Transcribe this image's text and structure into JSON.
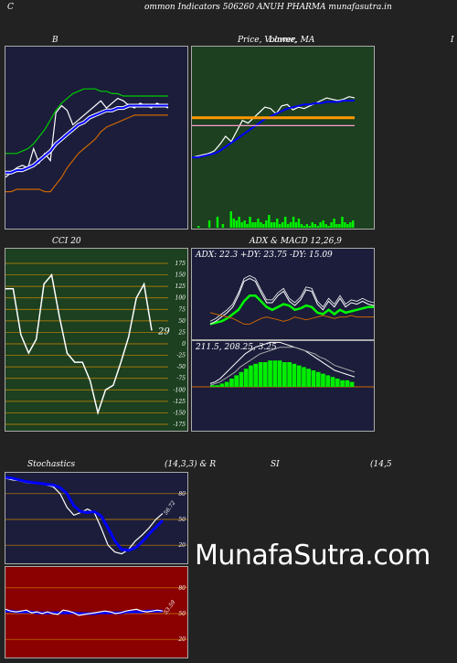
{
  "header": {
    "left_letter": "C",
    "title": "ommon  Indicators 506260  ANUH PHARMA munafasutra.in",
    "right_letter": ""
  },
  "titles": {
    "bb": "B",
    "price": "Price,  Volume,  MA",
    "price_overlap": "Lower,",
    "right_edge": "I",
    "cci": "CCI 20",
    "adx_macd": "ADX  & MACD 12,26,9",
    "stoch": "Stochastics",
    "stoch_params": "(14,3,3) & R",
    "rsi": "SI",
    "rsi_params": "(14,5"
  },
  "cci_panel": {
    "ticks": [
      "175",
      "150",
      "125",
      "100",
      "75",
      "50",
      "25",
      "0",
      "-25",
      "-50",
      "-75",
      "-100",
      "-125",
      "-150",
      "-175"
    ],
    "current_label": "29"
  },
  "adx_panel": {
    "readout": "ADX: 22.3  +DY: 23.75  -DY: 15.09"
  },
  "macd_panel": {
    "readout": "211.5,  208.25,  3.25"
  },
  "stoch_panel": {
    "ticks": [
      "80",
      "50",
      "20"
    ],
    "current_label": "56.72"
  },
  "rsi_panel": {
    "ticks": [
      "80",
      "50",
      "20"
    ],
    "current_label": "53.59"
  },
  "watermark": "MunafaSutra.com",
  "colors": {
    "page_bg": "#222222",
    "navy_panel": "#1b1d3b",
    "green_panel": "#1c4020",
    "red_panel": "#8b0000",
    "orange_line": "#cc6600",
    "blue_line": "#0000ff",
    "green_line": "#00cc00"
  },
  "chart_data": [
    {
      "type": "line",
      "name": "bollinger",
      "series": [
        {
          "name": "price",
          "color": "#ffffff",
          "values": [
            158,
            160,
            162,
            163,
            162,
            170,
            164,
            168,
            165,
            185,
            188,
            186,
            180,
            182,
            184,
            186,
            188,
            190,
            187,
            189,
            191,
            190,
            188,
            187,
            189,
            188,
            187,
            189,
            188,
            187
          ]
        },
        {
          "name": "upper",
          "color": "#00cc00",
          "values": [
            168,
            168,
            168,
            169,
            170,
            172,
            175,
            178,
            182,
            186,
            189,
            191,
            193,
            194,
            195,
            195,
            195,
            194,
            194,
            193,
            193,
            192,
            192,
            192,
            192,
            192,
            192,
            192,
            192,
            192
          ]
        },
        {
          "name": "middle",
          "color": "#0000ff",
          "values": [
            160,
            160,
            161,
            161,
            162,
            163,
            165,
            167,
            169,
            172,
            174,
            176,
            178,
            180,
            181,
            183,
            184,
            185,
            186,
            186,
            187,
            187,
            188,
            188,
            188,
            188,
            188,
            188,
            188,
            188
          ]
        },
        {
          "name": "lower",
          "color": "#cc6600",
          "values": [
            152,
            152,
            153,
            153,
            153,
            153,
            153,
            152,
            152,
            155,
            158,
            162,
            165,
            168,
            170,
            172,
            174,
            177,
            179,
            180,
            181,
            182,
            183,
            184,
            184,
            184,
            184,
            184,
            184,
            184
          ]
        }
      ]
    },
    {
      "type": "line",
      "name": "price_ma_volume",
      "series": [
        {
          "name": "price",
          "color": "#ffffff",
          "values": [
            160,
            161,
            162,
            163,
            165,
            170,
            176,
            172,
            180,
            188,
            186,
            190,
            194,
            198,
            197,
            193,
            199,
            200,
            196,
            198,
            197,
            199,
            201,
            203,
            205,
            204,
            203,
            204,
            206,
            205
          ]
        },
        {
          "name": "ma_blue",
          "color": "#0000ff",
          "values": [
            160,
            160,
            161,
            162,
            163,
            165,
            168,
            171,
            174,
            177,
            180,
            183,
            186,
            189,
            191,
            193,
            195,
            197,
            198,
            199,
            200,
            200,
            201,
            201,
            202,
            202,
            202,
            203,
            203,
            203
          ]
        },
        {
          "name": "ma_orange",
          "color": "#ff9900",
          "values": [
            190,
            190,
            190,
            190,
            190,
            190,
            190,
            190,
            190,
            190,
            190,
            190,
            190,
            190,
            190,
            190,
            190,
            190,
            190,
            190,
            190,
            190,
            190,
            190,
            190,
            190,
            190,
            190,
            190,
            190
          ]
        },
        {
          "name": "ma_pink",
          "color": "#ff99cc",
          "values": [
            184,
            184,
            184,
            184,
            184,
            184,
            184,
            184,
            184,
            184,
            184,
            184,
            184,
            184,
            184,
            184,
            184,
            184,
            184,
            184,
            184,
            184,
            184,
            184,
            184,
            184,
            184,
            184,
            184,
            184
          ]
        }
      ],
      "volume": [
        0,
        0,
        1,
        0,
        0,
        0,
        4,
        0,
        0,
        6,
        0,
        2,
        0,
        0,
        9,
        5,
        4,
        6,
        3,
        4,
        2,
        6,
        3,
        3,
        5,
        3,
        2,
        4,
        7,
        3,
        3,
        5,
        2,
        3,
        6,
        2,
        3,
        6,
        3,
        5,
        2,
        1,
        2,
        1,
        3,
        2,
        1,
        3,
        4,
        2,
        1,
        3,
        5,
        2,
        2,
        6,
        3,
        2,
        3,
        4
      ]
    },
    {
      "type": "line",
      "name": "cci",
      "ylim": [
        -175,
        175
      ],
      "values": [
        120,
        120,
        20,
        -20,
        10,
        130,
        150,
        60,
        -20,
        -40,
        -40,
        -80,
        -150,
        -100,
        -90,
        -40,
        15,
        100,
        130,
        29
      ]
    },
    {
      "type": "line",
      "name": "adx",
      "series": [
        {
          "name": "adx",
          "color": "#00ff00",
          "values": [
            10,
            11,
            12,
            14,
            17,
            20,
            26,
            30,
            30,
            26,
            22,
            20,
            22,
            24,
            23,
            20,
            21,
            23,
            22,
            18,
            17,
            20,
            17,
            20,
            18,
            19,
            20,
            21,
            22,
            22
          ]
        },
        {
          "name": "+DY",
          "color": "#ffffff",
          "values": [
            10,
            12,
            15,
            18,
            22,
            30,
            40,
            42,
            40,
            32,
            25,
            25,
            30,
            33,
            26,
            23,
            27,
            34,
            33,
            24,
            20,
            26,
            22,
            28,
            22,
            25,
            24,
            26,
            24,
            23
          ]
        },
        {
          "name": "-DY",
          "color": "#cc6600",
          "values": [
            18,
            17,
            16,
            15,
            14,
            12,
            10,
            10,
            12,
            14,
            15,
            14,
            13,
            12,
            13,
            15,
            14,
            13,
            14,
            15,
            16,
            15,
            14,
            15,
            15,
            16,
            15,
            15,
            15,
            15
          ]
        }
      ]
    },
    {
      "type": "bar",
      "name": "macd",
      "hist": [
        1,
        1,
        2,
        3,
        5,
        7,
        9,
        11,
        13,
        14,
        15,
        15,
        16,
        16,
        16,
        15,
        15,
        14,
        13,
        12,
        11,
        10,
        9,
        8,
        7,
        6,
        5,
        4,
        4,
        3
      ],
      "series": [
        {
          "name": "macd",
          "color": "#ffffff",
          "values": [
            2,
            3,
            5,
            8,
            11,
            14,
            17,
            20,
            22,
            24,
            25,
            26,
            27,
            27,
            27,
            26,
            25,
            24,
            23,
            22,
            20,
            18,
            16,
            14,
            12,
            10,
            9,
            8,
            7,
            6
          ]
        },
        {
          "name": "signal",
          "color": "#aaaaaa",
          "values": [
            1,
            2,
            3,
            5,
            7,
            9,
            12,
            14,
            16,
            18,
            20,
            21,
            22,
            23,
            24,
            24,
            24,
            24,
            23,
            22,
            21,
            20,
            18,
            17,
            15,
            13,
            12,
            11,
            10,
            9
          ]
        }
      ]
    },
    {
      "type": "line",
      "name": "stochastics",
      "ylim": [
        0,
        100
      ],
      "series": [
        {
          "name": "%K",
          "color": "#ffffff",
          "values": [
            98,
            96,
            95,
            93,
            92,
            92,
            90,
            88,
            80,
            64,
            55,
            58,
            62,
            58,
            40,
            20,
            12,
            10,
            15,
            25,
            32,
            40,
            50,
            57
          ]
        },
        {
          "name": "%D",
          "color": "#0000ff",
          "values": [
            99,
            98,
            96,
            94,
            93,
            92,
            91,
            90,
            87,
            80,
            66,
            59,
            58,
            59,
            54,
            40,
            25,
            15,
            14,
            17,
            24,
            33,
            41,
            49
          ]
        }
      ]
    },
    {
      "type": "line",
      "name": "rsi",
      "ylim": [
        0,
        100
      ],
      "series": [
        {
          "name": "rsi",
          "color": "#ffffff",
          "values": [
            55,
            53,
            52,
            53,
            54,
            51,
            52,
            50,
            52,
            50,
            49,
            54,
            53,
            51,
            48,
            49,
            50,
            51,
            52,
            53,
            52,
            50,
            51,
            53,
            54,
            55,
            53,
            52,
            53,
            54,
            53
          ]
        },
        {
          "name": "rsi_ma",
          "color": "#0000ff",
          "values": [
            53,
            53,
            52,
            52,
            52,
            52,
            51,
            51,
            51,
            51,
            51,
            51,
            51,
            51,
            50,
            50,
            50,
            50,
            51,
            51,
            51,
            51,
            51,
            52,
            52,
            52,
            52,
            53,
            53,
            53,
            53
          ]
        }
      ]
    }
  ]
}
